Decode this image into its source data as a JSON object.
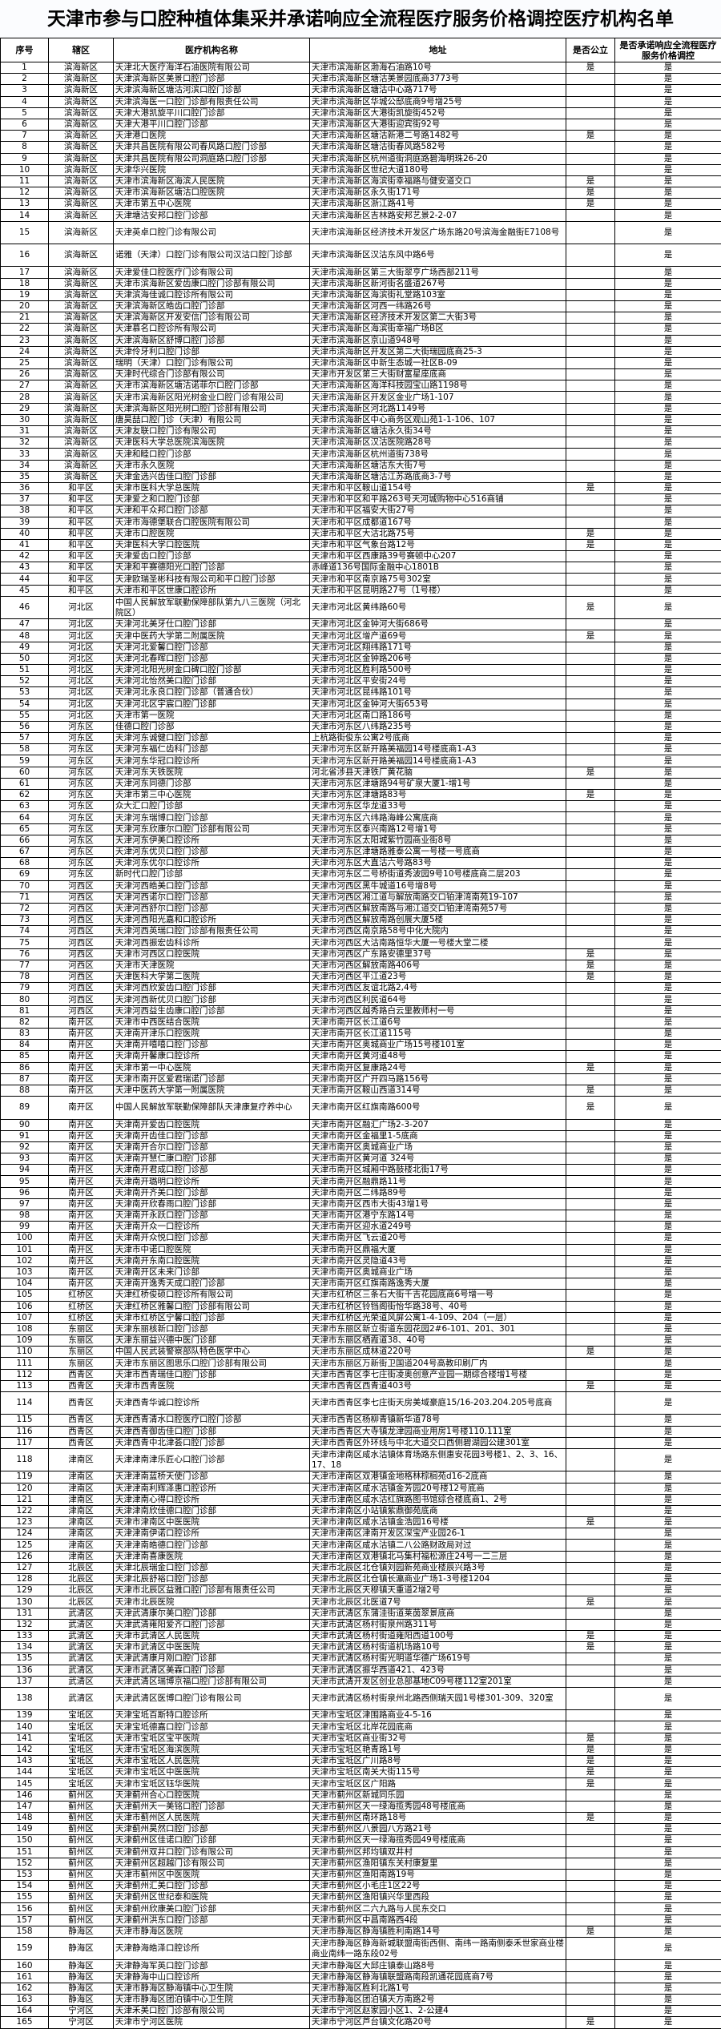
{
  "title": "天津市参与口腔种植体集采并承诺响应全流程医疗服务价格调控医疗机构名单",
  "columns": [
    "序号",
    "辖区",
    "医疗机构名称",
    "地址",
    "是否公立",
    "是否承诺响应全流程医疗服务价格调控"
  ],
  "rows": [
    [
      "1",
      "滨海新区",
      "天津北大医疗海洋石油医院有限公司",
      "天津市滨海新区渤海石油路10号",
      "是",
      "是"
    ],
    [
      "2",
      "滨海新区",
      "天津滨海新区美景口腔门诊部",
      "天津市滨海新区塘沽美景园底商3773号",
      "",
      "是"
    ],
    [
      "3",
      "滨海新区",
      "天津滨海新区塘沽河滨口腔门诊部",
      "天津市滨海新区塘沽中心路717号",
      "",
      "是"
    ],
    [
      "4",
      "滨海新区",
      "天津滨海医一口腔门诊部有限责任公司",
      "天津市滨海新区华城公邸底商9号增25号",
      "",
      "是"
    ],
    [
      "5",
      "滨海新区",
      "天津大港凯旋平川口腔门诊部",
      "天津市滨海新区大港街凯旋街452号",
      "",
      "是"
    ],
    [
      "6",
      "滨海新区",
      "天津大港平川口腔门诊部",
      "天津市滨海新区大港街迎宾街92号",
      "",
      "是"
    ],
    [
      "7",
      "滨海新区",
      "天津港口医院",
      "天津市滨海新区塘沽新港二号路1482号",
      "是",
      "是"
    ],
    [
      "8",
      "滨海新区",
      "天津共昌医院有限公司春风路口腔门诊部",
      "天津市滨海新区塘沽街春风路582号",
      "",
      "是"
    ],
    [
      "9",
      "滨海新区",
      "天津共昌医院有限公司洞庭路口腔门诊部",
      "天津市滨海新区杭州道街洞庭路碧海明珠26-20",
      "",
      "是"
    ],
    [
      "10",
      "滨海新区",
      "天津华兴医院",
      "天津市滨海新区世纪大道180号",
      "",
      "是"
    ],
    [
      "11",
      "滨海新区",
      "天津市滨海新区海滨人民医院",
      "天津市滨海新区海滨街幸福路与健安道交口",
      "是",
      "是"
    ],
    [
      "12",
      "滨海新区",
      "天津市滨海新区塘沽口腔医院",
      "天津市滨海新区永久街171号",
      "是",
      "是"
    ],
    [
      "13",
      "滨海新区",
      "天津市第五中心医院",
      "天津市滨海新区浙江路41号",
      "是",
      "是"
    ],
    [
      "14",
      "滨海新区",
      "天津塘沽安邦口腔门诊部",
      "天津市滨海新区吉林路安邦艺景2-2-07",
      "",
      "是"
    ],
    [
      "15",
      "滨海新区",
      "天津英卓口腔门诊有限公司",
      "天津市滨海新区经济技术开发区广场东路20号滨海金融街E7108号",
      "",
      "是"
    ],
    [
      "16",
      "滨海新区",
      "诺雅（天津）口腔门诊有限公司汉沽口腔门诊部",
      "天津市滨海新区汉沽东风中路6号",
      "",
      "是"
    ],
    [
      "17",
      "滨海新区",
      "天津爱佳口腔医疗门诊有限公司",
      "天津市滨海新区第三大街翠亨广场西部211号",
      "",
      "是"
    ],
    [
      "18",
      "滨海新区",
      "天津市滨海新区爱齿康口腔门诊部有限公司",
      "天津市滨海新区新河街名盛道267号",
      "",
      "是"
    ],
    [
      "19",
      "滨海新区",
      "天津滨海佳诚口腔诊所有限公司",
      "天津市滨海新区海滨街礼堂路103室",
      "",
      "是"
    ],
    [
      "20",
      "滨海新区",
      "天津滨海新区皓齿口腔门诊部",
      "天津市滨海新区河西一纬路26号",
      "",
      "是"
    ],
    [
      "21",
      "滨海新区",
      "天津滨海新区开发安信门诊有限公司",
      "天津市滨海新区经济技术开发区第二大街3号",
      "",
      "是"
    ],
    [
      "22",
      "滨海新区",
      "天津慕名口腔诊所有限公司",
      "天津市滨海新区海滨街幸福广场B区",
      "",
      "是"
    ],
    [
      "23",
      "滨海新区",
      "天津滨海新区舒博口腔门诊部",
      "天津市滨海新区京山道948号",
      "",
      "是"
    ],
    [
      "24",
      "滨海新区",
      "天津伶牙利口腔门诊部",
      "天津市滨海新区开发区第二大街瑞园底商25-3",
      "",
      "是"
    ],
    [
      "25",
      "滨海新区",
      "瑞明（天津）口腔门诊有限公司",
      "天津市滨海新区中新生态城一社区B-09",
      "",
      "是"
    ],
    [
      "26",
      "滨海新区",
      "天津时代综合门诊部有限公司",
      "天津市开发区第三大街财富星座底商",
      "",
      "是"
    ],
    [
      "27",
      "滨海新区",
      "天津市滨海新区塘沽诺菲尔口腔门诊部",
      "天津市滨海新区海洋科技园宝山路1198号",
      "",
      "是"
    ],
    [
      "28",
      "滨海新区",
      "天津市滨海新区阳光树金业口腔门诊有限公司",
      "天津市滨海新区开发区金业广场1-107",
      "",
      "是"
    ],
    [
      "29",
      "滨海新区",
      "天津滨海新区阳光树口腔门诊部有限公司",
      "天津市滨海新区河北路1149号",
      "",
      "是"
    ],
    [
      "30",
      "滨海新区",
      "唐昊喆口腔门诊（天津）有限公司",
      "天津市滨海新区中心商务区观山苑1-1-106、107",
      "",
      "是"
    ],
    [
      "31",
      "滨海新区",
      "天津友联口腔门诊有限公司",
      "天津市滨海新区塘沽永久街34号",
      "",
      "是"
    ],
    [
      "32",
      "滨海新区",
      "天津医科大学总医院滨海医院",
      "天津市滨海新区汉沽医院路28号",
      "",
      "是"
    ],
    [
      "33",
      "滨海新区",
      "天津和睦口腔门诊部",
      "天津市滨海新区杭州道街738号",
      "",
      "是"
    ],
    [
      "34",
      "滨海新区",
      "天津市永久医院",
      "天津市滨海新区塘沽东大街7号",
      "",
      "是"
    ],
    [
      "35",
      "滨海新区",
      "天津金选兴齿佳口腔门诊部",
      "天津市滨海新区塘沽江苏路底商3-7号",
      "",
      "是"
    ],
    [
      "36",
      "和平区",
      "天津市医科大学总医院",
      "天津市和平区鞍山道154号",
      "是",
      "是"
    ],
    [
      "37",
      "和平区",
      "天津爱之和口腔门诊部",
      "天津市和平区和平路263号天河城购物中心516商铺",
      "",
      "是"
    ],
    [
      "38",
      "和平区",
      "天津和平众邦口腔门诊部",
      "天津市和平区福安大街27号",
      "",
      "是"
    ],
    [
      "39",
      "和平区",
      "天津市海德堡联合口腔医院有限公司",
      "天津市和平区成都道167号",
      "",
      "是"
    ],
    [
      "40",
      "和平区",
      "天津市口腔医院",
      "天津市和平区大沽北路75号",
      "是",
      "是"
    ],
    [
      "41",
      "和平区",
      "天津医科大学口腔医院",
      "天津市和平区气象台路12号",
      "是",
      "是"
    ],
    [
      "42",
      "和平区",
      "天津爱齿口腔门诊部",
      "天津市和平区西康路39号赛顿中心207",
      "",
      "是"
    ],
    [
      "43",
      "和平区",
      "天津和平赛德阳光口腔门诊部",
      "赤峰道136号国际金融中心1801B",
      "",
      "是"
    ],
    [
      "44",
      "和平区",
      "天津欧瑞圣彬科技有限公司和平口腔门诊部",
      "天津市和平区南京路75号302室",
      "",
      "是"
    ],
    [
      "45",
      "和平区",
      "天津市和平区世康口腔诊所",
      "天津市和平区昆明路27号（1号楼）",
      "",
      "是"
    ],
    [
      "46",
      "河北区",
      "中国人民解放军联勤保障部队第九八三医院（河北院区）",
      "天津市河北区黄纬路60号",
      "是",
      "是"
    ],
    [
      "47",
      "河北区",
      "天津河北美牙仕口腔门诊部",
      "天津市河北区金钟河大街686号",
      "",
      "是"
    ],
    [
      "48",
      "河北区",
      "天津中医药大学第二附属医院",
      "天津市河北区增产道69号",
      "是",
      "是"
    ],
    [
      "49",
      "河北区",
      "天津河北爱馨口腔门诊部",
      "天津市河北区翔纬路171号",
      "",
      "是"
    ],
    [
      "50",
      "河北区",
      "天津河北春晖口腔门诊部",
      "天津市河北区金钟路206号",
      "",
      "是"
    ],
    [
      "51",
      "河北区",
      "天津河北阳光树金口碑口腔门诊部",
      "天津市河北区胜利路500号",
      "",
      "是"
    ],
    [
      "52",
      "河北区",
      "天津河北怡然美口腔门诊部",
      "天津市河北区平安街24号",
      "",
      "是"
    ],
    [
      "53",
      "河北区",
      "天津河北永良口腔门诊部（普通合伙）",
      "天津市河北区昆纬路101号",
      "",
      "是"
    ],
    [
      "54",
      "河北区",
      "天津河北区宇宸口腔门诊部",
      "天津市河北区金钟河大街653号",
      "",
      "是"
    ],
    [
      "55",
      "河北区",
      "天津市第一医院",
      "天津市河北区南口路186号",
      "",
      "是"
    ],
    [
      "56",
      "河东区",
      "佳德口腔门诊部",
      "天津市河东区八纬路235号",
      "",
      "是"
    ],
    [
      "57",
      "河东区",
      "天津河东诚健口腔门诊部",
      "上杭路街俊东公寓2号底商",
      "",
      "是"
    ],
    [
      "58",
      "河东区",
      "天津河东福仁齿科门诊部",
      "天津市河东区新开路美福园14号楼底商1-A3",
      "",
      "是"
    ],
    [
      "59",
      "河东区",
      "天津河东华冠口腔诊所",
      "天津市河东区新开路美福园14号楼底商1-A3",
      "",
      "是"
    ],
    [
      "60",
      "河东区",
      "天津河东天铁医院",
      "河北省涉县天津铁厂黄花脑",
      "是",
      "是"
    ],
    [
      "61",
      "河东区",
      "天津河东同德门诊部",
      "天津市河东区津塘路94号矿泉大厦1-增1号",
      "",
      "是"
    ],
    [
      "62",
      "河东区",
      "天津市第三中心医院",
      "天津市河东区津塘路83号",
      "是",
      "是"
    ],
    [
      "63",
      "河东区",
      "众大汇口腔门诊部",
      "天津市河东区华龙道33号",
      "",
      "是"
    ],
    [
      "64",
      "河东区",
      "天津河东瑞博口腔门诊部",
      "天津市河东区六纬路海峰公寓底商",
      "",
      "是"
    ],
    [
      "65",
      "河东区",
      "天津河东欣康尔口腔门诊部有限公司",
      "天津市河东区泰兴南路12号增1号",
      "",
      "是"
    ],
    [
      "66",
      "河东区",
      "天津河东伊美口腔诊所",
      "天津市河东区太阳城紫竹园商业街8号",
      "",
      "是"
    ],
    [
      "67",
      "河东区",
      "天津河东优贝口腔门诊部",
      "天津市河东区津塘路雅泰公寓一号楼一号底商",
      "",
      "是"
    ],
    [
      "68",
      "河东区",
      "天津河东优尔口腔诊所",
      "天津市河东区大直沽六号路83号",
      "",
      "是"
    ],
    [
      "69",
      "河东区",
      "新时代口腔门诊部",
      "天津市河东区二号桥街道秀波园9号10号楼底商二层203",
      "",
      "是"
    ],
    [
      "70",
      "河西区",
      "天津河西皓美口腔门诊部",
      "天津市河西区黑牛城道16号增8号",
      "",
      "是"
    ],
    [
      "71",
      "河西区",
      "天津河西诺尔口腔门诊部",
      "天津市河西区湘江道与解放南路交口铂津湾南苑19-107",
      "",
      "是"
    ],
    [
      "72",
      "河西区",
      "天津河西舒尔口腔门诊部",
      "天津市河西区解放南路与湘江道交口铂津湾南苑57号",
      "",
      "是"
    ],
    [
      "73",
      "河西区",
      "天津河西阳光嘉和口腔诊所",
      "天津市河西区解放南路创展大厦5楼",
      "",
      "是"
    ],
    [
      "74",
      "河西区",
      "天津河西英瑞口腔门诊部有限责任公司",
      "天津市河西区南京路58号中化大院内",
      "",
      "是"
    ],
    [
      "75",
      "河西区",
      "天津河西振宏齿科诊所",
      "天津市河西区大沽南路恒华大厦一号楼大堂二楼",
      "",
      "是"
    ],
    [
      "76",
      "河西区",
      "天津市河西区口腔医院",
      "天津市河西区广东路安德里37号",
      "是",
      "是"
    ],
    [
      "77",
      "河西区",
      "天津市天津医院",
      "天津市河西区解放南路406号",
      "是",
      "是"
    ],
    [
      "78",
      "河西区",
      "天津医科大学第二医院",
      "天津市河西区平江道23号",
      "是",
      "是"
    ],
    [
      "79",
      "河西区",
      "天津河西欣爱齿口腔门诊部",
      "天津市河西区友谊北路2,4号",
      "",
      "是"
    ],
    [
      "80",
      "河西区",
      "天津河西新优贝口腔门诊部",
      "天津市河西区利民道64号",
      "",
      "是"
    ],
    [
      "81",
      "河西区",
      "天津河西益生齿康口腔门诊部",
      "天津市河西区越秀路白云里教师村一号",
      "",
      "是"
    ],
    [
      "82",
      "南开区",
      "天津市中西医结合医院",
      "天津市南开区长江道6号",
      "",
      "是"
    ],
    [
      "83",
      "南开区",
      "天津南开津乐口腔医院",
      "天津市南开区长江道115号",
      "",
      "是"
    ],
    [
      "84",
      "南开区",
      "天津南开嘻嘻口腔门诊部",
      "天津市南开区奥城商业广场15号楼101室",
      "",
      "是"
    ],
    [
      "85",
      "南开区",
      "天津南开馨康口腔诊所",
      "天津市南开区黄河道48号",
      "",
      "是"
    ],
    [
      "86",
      "南开区",
      "天津市第一中心医院",
      "天津市南开区复康路24号",
      "是",
      "是"
    ],
    [
      "87",
      "南开区",
      "天津市南开区爱君瑞诺门诊部",
      "天津市南开区广开四马路156号",
      "",
      "是"
    ],
    [
      "88",
      "南开区",
      "天津中医药大学第一附属医院",
      "天津市南开区鞍山西道314号",
      "是",
      "是"
    ],
    [
      "89",
      "南开区",
      "中国人民解放军联勤保障部队天津康复疗养中心",
      "天津市南开区红旗南路600号",
      "是",
      "是"
    ],
    [
      "90",
      "南开区",
      "天津南开爱齿口腔医院",
      "天津市南开区融汇广场2-3-207",
      "",
      "是"
    ],
    [
      "91",
      "南开区",
      "天津南开齿佳口腔门诊部",
      "天津市南开区金福里1-5底商",
      "",
      "是"
    ],
    [
      "92",
      "南开区",
      "天津南开合尔口腔门诊部",
      "天津市南开区奥城商业广场",
      "",
      "是"
    ],
    [
      "93",
      "南开区",
      "天津南开慧仁康口腔门诊部",
      "天津市南开区黄河道 324号",
      "",
      "是"
    ],
    [
      "94",
      "南开区",
      "天津南开君成口腔门诊部",
      "天津市南开区城厢中路鼓楼北街17号",
      "",
      "是"
    ],
    [
      "95",
      "南开区",
      "天津南开璐明口腔诊所",
      "天津市南开区融鼎路11号",
      "",
      "是"
    ],
    [
      "96",
      "南开区",
      "天津南开齐美口腔门诊部",
      "天津市南开区二纬路89号",
      "",
      "是"
    ],
    [
      "97",
      "南开区",
      "天津南开欣春雨口腔门诊部",
      "天津市南开区西市大街43增1号",
      "",
      "是"
    ],
    [
      "98",
      "南开区",
      "天津南开永跃口腔门诊部",
      "天津市南开区港宁东路14号",
      "",
      "是"
    ],
    [
      "99",
      "南开区",
      "天津南开众一口腔诊所",
      "天津市南开区迎水道249号",
      "",
      "是"
    ],
    [
      "100",
      "南开区",
      "天津南开众悦口腔门诊部",
      "天津市南开区飞云道20号",
      "",
      "是"
    ],
    [
      "101",
      "南开区",
      "天津市中诺口腔医院",
      "天津市南开区鼎福大厦",
      "",
      "是"
    ],
    [
      "102",
      "南开区",
      "天津南开东南口腔医院",
      "天津市南开区灵隐道43号",
      "",
      "是"
    ],
    [
      "103",
      "南开区",
      "天津南开区未来门诊部",
      "天津市南开区奥城商业广场",
      "",
      "是"
    ],
    [
      "104",
      "南开区",
      "天津南开逸秀天成口腔门诊部",
      "天津市南开区红旗南路逸秀大厦",
      "",
      "是"
    ],
    [
      "105",
      "红桥区",
      "天津红桥俊硕口腔诊所有限公司",
      "天津市红桥区三条石大街千吉花园底商6号增一号",
      "",
      "是"
    ],
    [
      "106",
      "红桥区",
      "天津红桥区雅馨口腔门诊部有限公司",
      "天津市红桥区铃铛阁街怡华路38号、40号",
      "",
      "是"
    ],
    [
      "107",
      "红桥区",
      "天津市红桥区宁馨口腔门诊部",
      "天津市红桥区光荣道风屏公寓1-4-109、204（一层）",
      "",
      "是"
    ],
    [
      "108",
      "东丽区",
      "天津东丽核新口腔门诊部",
      "天津市东丽区新立街道东园花园2#6-101、201、301",
      "",
      "是"
    ],
    [
      "109",
      "东丽区",
      "天津东丽益兴德中医门诊部",
      "天津市东丽区栖霞道38、40号",
      "",
      "是"
    ],
    [
      "110",
      "东丽区",
      "中国人民武装警察部队特色医学中心",
      "天津市东丽区成林道220号",
      "是",
      "是"
    ],
    [
      "111",
      "东丽区",
      "天津市东丽区图思乐口腔门诊部有限公司",
      "天津市东丽区万新街卫国道204号高教印刷厂内",
      "",
      "是"
    ],
    [
      "112",
      "西青区",
      "天津市西青瑞佳口腔门诊部",
      "天津市西青区李七庄街凌奥创意产业园一期综合楼增1号楼",
      "",
      "是"
    ],
    [
      "113",
      "西青区",
      "天津市西青医院",
      "天津市西青区西青道403号",
      "是",
      "是"
    ],
    [
      "114",
      "西青区",
      "天津西青华诚口腔诊所",
      "天津市西青区李七庄街天房美域豪庭15/16-203.204.205号底商",
      "",
      "是"
    ],
    [
      "115",
      "西青区",
      "天津西青清水口腔医疗口腔门诊部",
      "天津市西青区杨柳青镇新华道78号",
      "",
      "是"
    ],
    [
      "116",
      "西青区",
      "天津西青御齿佳口腔门诊部",
      "天津市西青区大寺镇龙津园商业用房1号楼110.111室",
      "",
      "是"
    ],
    [
      "117",
      "西青区",
      "天津西青中北津荟口腔门诊部",
      "天津市西青区外环线与中北大道交口西侧碧湖园公建301室",
      "",
      "是"
    ],
    [
      "118",
      "津南区",
      "天津津南津乐匠心口腔门诊部",
      "天津市津南区咸水沽镇体育场路东侧惠安花园3号楼1、2、3、16、17、18",
      "",
      "是"
    ],
    [
      "119",
      "津南区",
      "天津津南蓝桥天使门诊部",
      "天津市津南区双港镇金地格林棕榈苑d16-2底商",
      "",
      "是"
    ],
    [
      "120",
      "津南区",
      "天津津南利辉泽惠口腔诊所",
      "天津市津南区咸水沽镇金芳园20号楼12号底商",
      "",
      "是"
    ],
    [
      "121",
      "津南区",
      "天津津南心得口腔诊所",
      "天津市津南区咸水沽红旗路图书馆综合楼底商1、2号",
      "",
      "是"
    ],
    [
      "122",
      "津南区",
      "天津津南欣佳德口腔门诊部",
      "天津市津南区小站镇紫鼎御苑底商",
      "",
      "是"
    ],
    [
      "123",
      "津南区",
      "天津市津南区中医医院",
      "天津市津南区咸水沽镇金浩园16号楼",
      "是",
      "是"
    ],
    [
      "124",
      "津南区",
      "天津津南伊诺口腔诊所",
      "天津市津南区津南开发区深宝产业园26-1",
      "",
      "是"
    ],
    [
      "125",
      "津南区",
      "天津津南皓德口腔门诊部",
      "天津市津南区咸水沽镇二八公路财政局对过",
      "",
      "是"
    ],
    [
      "126",
      "津南区",
      "天津津南喜康医院",
      "天津市津南区双港镇北马集村福松源庄24号一二三层",
      "",
      "是"
    ],
    [
      "127",
      "北辰区",
      "天津北辰瑞金口腔门诊部",
      "天津市北辰区北仓镇刘园新苑商业楼辰兴路3号",
      "",
      "是"
    ],
    [
      "128",
      "北辰区",
      "天津北辰舒裕口腔门诊部",
      "天津市北辰区北仓镇长瀛商业广场1-3号楼1204",
      "",
      "是"
    ],
    [
      "129",
      "北辰区",
      "天津市北辰区益雅口腔门诊部有限责任公司",
      "天津市北辰区天穆镇天重道2增2号",
      "",
      "是"
    ],
    [
      "130",
      "北辰区",
      "天津市北辰医院",
      "天津市北辰区北医道7号",
      "是",
      "是"
    ],
    [
      "131",
      "武清区",
      "天津武清康尔美口腔门诊部",
      "天津市武清区东蒲洼街道莱茵翠景底商",
      "",
      "是"
    ],
    [
      "132",
      "武清区",
      "天津武清雍阳爱齐口腔门诊部",
      "天津市武清区杨村街泉州路311号",
      "",
      "是"
    ],
    [
      "133",
      "武清区",
      "天津市武清区人民医院",
      "天津市武清区杨村街道雍阳西道100号",
      "是",
      "是"
    ],
    [
      "134",
      "武清区",
      "天津市武清区中医医院",
      "天津市武清区杨村街道机场路10号",
      "是",
      "是"
    ],
    [
      "135",
      "武清区",
      "天津武清康月刚口腔门诊部",
      "天津市武清区杨村街光明道华德广场619号",
      "",
      "是"
    ],
    [
      "136",
      "武清区",
      "天津市武清区美霖口腔门诊部",
      "天津市武清区振华西道421、423号",
      "",
      "是"
    ],
    [
      "137",
      "武清区",
      "天津武清区瑞博京福口腔门诊部有限公司",
      "天津市武清开发区创业总部基地C09号楼112室201室",
      "",
      "是"
    ],
    [
      "138",
      "武清区",
      "天津武清区医博口腔门诊有限公司",
      "天津市武清区杨村街泉州北路西侧瑞天园1号楼301-309、320室",
      "",
      "是"
    ],
    [
      "139",
      "宝坻区",
      "天津宝坻百斯特口腔诊所",
      "天津市宝坻区津围路商业4-5-16",
      "",
      "是"
    ],
    [
      "140",
      "宝坻区",
      "天津宝坻德嘉口腔门诊部",
      "天津市宝坻区北岸花园底商",
      "",
      "是"
    ],
    [
      "141",
      "宝坻区",
      "天津市宝坻区宝平医院",
      "天津市宝坻区商业街32号",
      "是",
      "是"
    ],
    [
      "142",
      "宝坻区",
      "天津市宝坻区海滨医院",
      "天津市宝坻区艳青路1号",
      "是",
      "是"
    ],
    [
      "143",
      "宝坻区",
      "天津市宝坻区人民医院",
      "天津市宝坻区广川路8号",
      "是",
      "是"
    ],
    [
      "144",
      "宝坻区",
      "天津市宝坻区中医医院",
      "天津市宝坻区南关大街115号",
      "是",
      "是"
    ],
    [
      "145",
      "宝坻区",
      "天津市宝坻区钰华医院",
      "天津市宝坻区区广阳路",
      "是",
      "是"
    ],
    [
      "146",
      "蓟州区",
      "天津蓟州合心口腔医院",
      "天津市蓟州区新城同乐园",
      "",
      "是"
    ],
    [
      "147",
      "蓟州区",
      "天津蓟州天一美铭口腔门诊部",
      "天津市蓟州区天一绿海揽秀园48号楼底商",
      "",
      "是"
    ],
    [
      "148",
      "蓟州区",
      "天津市蓟州区人民医院",
      "天津市蓟州区南环路18号",
      "是",
      "是"
    ],
    [
      "149",
      "蓟州区",
      "天津蓟州昊然口腔门诊部",
      "天津市蓟州区八景园八方路21号",
      "",
      "是"
    ],
    [
      "150",
      "蓟州区",
      "天津蓟州区佳诺口腔门诊部",
      "天津市蓟州区天一绿海揽秀园49号楼底商",
      "",
      "是"
    ],
    [
      "151",
      "蓟州区",
      "天津蓟州双井口腔门诊有限公司",
      "天津市蓟州区邦均镇双井村",
      "",
      "是"
    ],
    [
      "152",
      "蓟州区",
      "天津蓟州区超越门诊有限公司",
      "天津市蓟州区渔阳镇东关村康复里",
      "",
      "是"
    ],
    [
      "153",
      "蓟州区",
      "天津市蓟州区中医医院",
      "天津市蓟州区渔阳南路19号",
      "",
      "是"
    ],
    [
      "154",
      "蓟州区",
      "天津蓟州汇美口腔门诊部",
      "天津市蓟州区小毛庄1区22号",
      "",
      "是"
    ],
    [
      "155",
      "蓟州区",
      "天津蓟州区世纪泰和医院",
      "天津市蓟州区渔阳镇兴华里西段",
      "",
      "是"
    ],
    [
      "156",
      "蓟州区",
      "天津蓟州欣康美口腔门诊部",
      "天津市蓟州区二六九路与人民东交口",
      "",
      "是"
    ],
    [
      "157",
      "蓟州区",
      "天津蓟州洪东口腔门诊部",
      "天津市蓟州区中昌南路西4段",
      "",
      "是"
    ],
    [
      "158",
      "静海区",
      "天津市静海区医院",
      "天津市静海区静海镇胜利南路14号",
      "是",
      "是"
    ],
    [
      "159",
      "静海区",
      "天津静海皓泽口腔诊所",
      "天津市静海区静海新城联盟南街西侧、南纬一路南侧泰禾世家商业楼商业南纬一路东段02号",
      "",
      "是"
    ],
    [
      "160",
      "静海区",
      "天津静海军英口腔门诊部",
      "天津市静海区大邱庄镇泰山路8号",
      "",
      "是"
    ],
    [
      "161",
      "静海区",
      "天津静海中山口腔诊所",
      "天津市静海区静海镇联盟路南段凯通花园底商7号",
      "",
      "是"
    ],
    [
      "162",
      "静海区",
      "天津市静海区静海镇中心卫生院",
      "天津市静海区胜利北路1号",
      "",
      "是"
    ],
    [
      "163",
      "静海区",
      "天津市静海区团泊镇中心卫生院",
      "天津市静海区团泊镇天方南路2号",
      "",
      "是"
    ],
    [
      "164",
      "宁河区",
      "天津禾美口腔门诊部有限公司",
      "天津市宁河区赵家园小区1、2-公建4",
      "",
      "是"
    ],
    [
      "165",
      "宁河区",
      "天津市宁河区医院",
      "天津市宁河区芦台镇文化路20号",
      "是",
      "是"
    ]
  ]
}
